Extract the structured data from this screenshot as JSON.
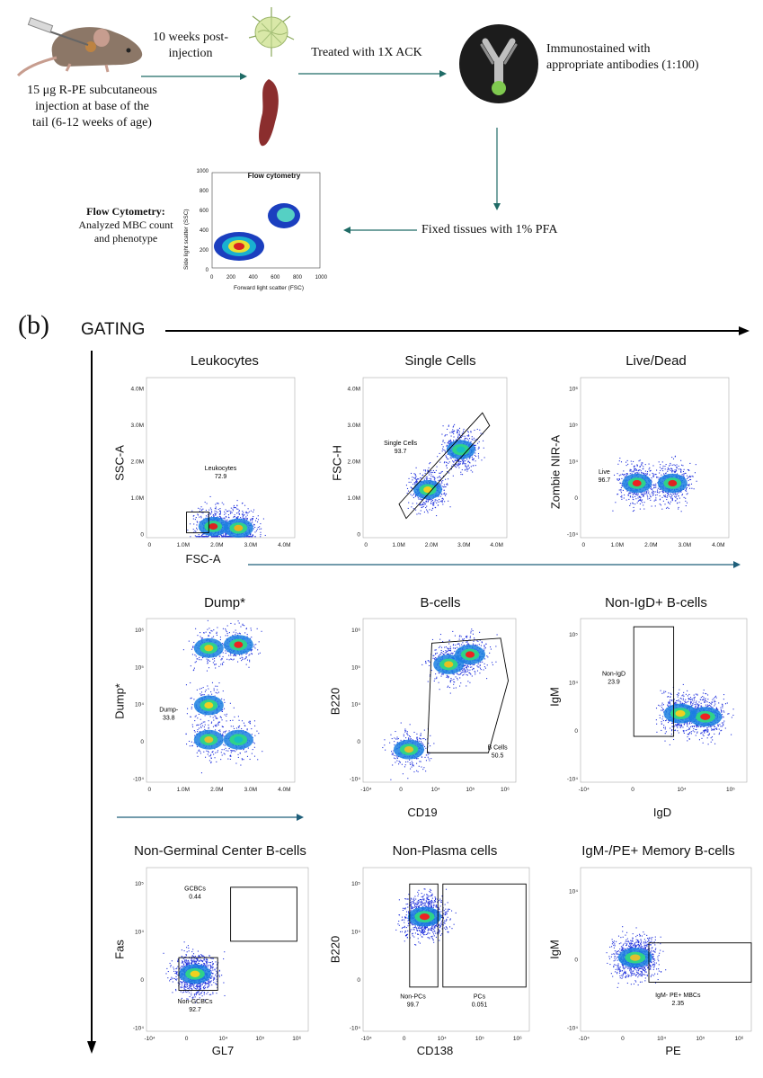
{
  "workflow": {
    "mouse_caption": "15 μg R-PE subcutaneous injection at base of the tail (6-12 weeks of age)",
    "step_10_weeks": "10 weeks post-injection",
    "step_ack": "Treated with 1X ACK",
    "step_immuno": "Immunostained with appropriate antibodies (1:100)",
    "step_fixed": "Fixed tissues with 1% PFA",
    "flow_label_bold": "Flow Cytometry:",
    "flow_label_rest": "Analyzed MBC count and phenotype",
    "flow_plot": {
      "title": "Flow cytometry",
      "xlabel": "Forward light scatter (FSC)",
      "ylabel": "Side light scatter (SSC)",
      "xticks": [
        "0",
        "200",
        "400",
        "600",
        "800",
        "1000"
      ],
      "yticks": [
        "0",
        "200",
        "400",
        "600",
        "800",
        "1000"
      ]
    },
    "colors": {
      "arrow": "#1f6b66",
      "blue_arrow": "#1f5f7a"
    }
  },
  "panel_b": {
    "label": "(b)",
    "gating_label": "GATING",
    "plots": [
      {
        "title": "Leukocytes",
        "xlabel": "FSC-A",
        "ylabel": "SSC-A",
        "gate_name": "Leukocytes",
        "gate_value": "72.9",
        "xticks": [
          "0",
          "1.0M",
          "2.0M",
          "3.0M",
          "4.0M"
        ],
        "yticks": [
          "0",
          "1.0M",
          "2.0M",
          "3.0M",
          "4.0M"
        ]
      },
      {
        "title": "Single Cells",
        "xlabel": "",
        "ylabel": "FSC-H",
        "gate_name": "Single Cells",
        "gate_value": "93.7",
        "xticks": [
          "0",
          "1.0M",
          "2.0M",
          "3.0M",
          "4.0M"
        ],
        "yticks": [
          "0",
          "1.0M",
          "2.0M",
          "3.0M",
          "4.0M"
        ]
      },
      {
        "title": "Live/Dead",
        "xlabel": "",
        "ylabel": "Zombie NIR-A",
        "gate_name": "Live",
        "gate_value": "96.7",
        "xticks": [
          "0",
          "1.0M",
          "2.0M",
          "3.0M",
          "4.0M"
        ],
        "yticks": [
          "-10⁴",
          "0",
          "10⁴",
          "10⁵",
          "10⁶"
        ]
      },
      {
        "title": "Dump*",
        "xlabel": "",
        "ylabel": "Dump*",
        "gate_name": "Dump-",
        "gate_value": "33.8",
        "xticks": [
          "0",
          "1.0M",
          "2.0M",
          "3.0M",
          "4.0M"
        ],
        "yticks": [
          "-10⁴",
          "0",
          "10⁴",
          "10⁵",
          "10⁶"
        ]
      },
      {
        "title": "B-cells",
        "xlabel": "CD19",
        "ylabel": "B220",
        "gate_name": "B Cells",
        "gate_value": "50.5",
        "xticks": [
          "-10⁴",
          "0",
          "10⁴",
          "10⁵",
          "10⁶"
        ],
        "yticks": [
          "-10⁴",
          "0",
          "10⁴",
          "10⁵",
          "10⁶"
        ]
      },
      {
        "title": "Non-IgD+ B-cells",
        "xlabel": "IgD",
        "ylabel": "IgM",
        "gate_name": "Non-IgD",
        "gate_value": "23.9",
        "xticks": [
          "-10⁴",
          "0",
          "10⁴",
          "10⁵"
        ],
        "yticks": [
          "-10⁴",
          "0",
          "10⁴",
          "10⁵"
        ]
      },
      {
        "title": "Non-Germinal Center B-cells",
        "xlabel": "GL7",
        "ylabel": "Fas",
        "gate_name": "Non-GCBCs",
        "gate_value": "92.7",
        "gate2_name": "GCBCs",
        "gate2_value": "0.44",
        "xticks": [
          "-10⁴",
          "0",
          "10⁴",
          "10⁵",
          "10⁶"
        ],
        "yticks": [
          "-10⁴",
          "0",
          "10⁴",
          "10⁵"
        ]
      },
      {
        "title": "Non-Plasma cells",
        "xlabel": "CD138",
        "ylabel": "B220",
        "gate_name": "Non-PCs",
        "gate_value": "99.7",
        "gate2_name": "PCs",
        "gate2_value": "0.051",
        "xticks": [
          "-10⁴",
          "0",
          "10⁴",
          "10⁵",
          "10⁶"
        ],
        "yticks": [
          "-10⁴",
          "0",
          "10⁴",
          "10⁵"
        ]
      },
      {
        "title": "IgM-/PE+ Memory B-cells",
        "xlabel": "PE",
        "ylabel": "IgM",
        "gate_name": "IgM- PE+ MBCs",
        "gate_value": "2.35",
        "xticks": [
          "-10⁴",
          "0",
          "10⁴",
          "10⁵",
          "10⁶"
        ],
        "yticks": [
          "-10⁴",
          "0",
          "10⁴"
        ]
      }
    ]
  }
}
